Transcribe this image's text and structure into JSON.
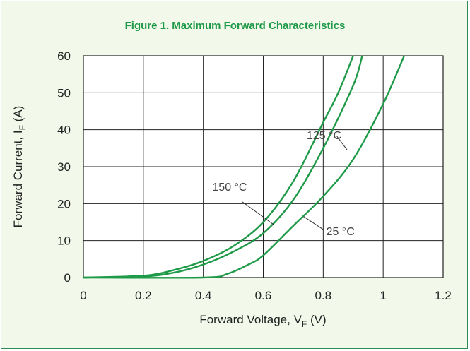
{
  "chart_data": {
    "type": "line",
    "title": "Figure 1. Maximum Forward Characteristics",
    "xlabel": {
      "main": "Forward Voltage, V",
      "sub": "F",
      "unit": " (V)"
    },
    "ylabel": {
      "main": "Forward Current, I",
      "sub": "F",
      "unit": " (A)"
    },
    "xlim": [
      0,
      1.2
    ],
    "ylim": [
      0,
      60
    ],
    "xticks": [
      0,
      0.2,
      0.4,
      0.6,
      0.8,
      1,
      1.2
    ],
    "xtick_labels": [
      "0",
      "0.2",
      "0.4",
      "0.6",
      "0.8",
      "1",
      "1.2"
    ],
    "yticks": [
      0,
      10,
      20,
      30,
      40,
      50,
      60
    ],
    "ytick_labels": [
      "0",
      "10",
      "20",
      "30",
      "40",
      "50",
      "60"
    ],
    "grid": true,
    "line_color": "#1f9a48",
    "series": [
      {
        "name": "125 °C",
        "x": [
          0,
          0.2,
          0.3,
          0.4,
          0.5,
          0.6,
          0.7,
          0.8,
          0.85,
          0.9
        ],
        "y": [
          0,
          0.5,
          2,
          4.5,
          8.5,
          15,
          26,
          42,
          50,
          60
        ]
      },
      {
        "name": "150 °C",
        "x": [
          0,
          0.2,
          0.3,
          0.4,
          0.5,
          0.6,
          0.7,
          0.8,
          0.9,
          0.93
        ],
        "y": [
          0,
          0.3,
          1.3,
          3.5,
          7,
          12,
          21,
          35,
          52,
          60
        ]
      },
      {
        "name": "25 °C",
        "x": [
          0,
          0.4,
          0.48,
          0.55,
          0.6,
          0.7,
          0.8,
          0.9,
          1.0,
          1.07
        ],
        "y": [
          0,
          0,
          1,
          3.5,
          6,
          14,
          22,
          32,
          47,
          60
        ]
      }
    ],
    "annotations": [
      {
        "label": "125 °C",
        "text_at": [
          0.745,
          37.5
        ],
        "arrow_from": [
          0.845,
          38.3
        ],
        "arrow_to": [
          0.88,
          34.5
        ]
      },
      {
        "label": "150 °C",
        "text_at": [
          0.43,
          23.5
        ],
        "arrow_from": [
          0.53,
          20.5
        ],
        "arrow_to": [
          0.635,
          14.3
        ]
      },
      {
        "label": "25 °C",
        "text_at": [
          0.81,
          11.5
        ],
        "arrow_from": [
          0.8,
          13
        ],
        "arrow_to": [
          0.735,
          16.5
        ]
      }
    ]
  }
}
